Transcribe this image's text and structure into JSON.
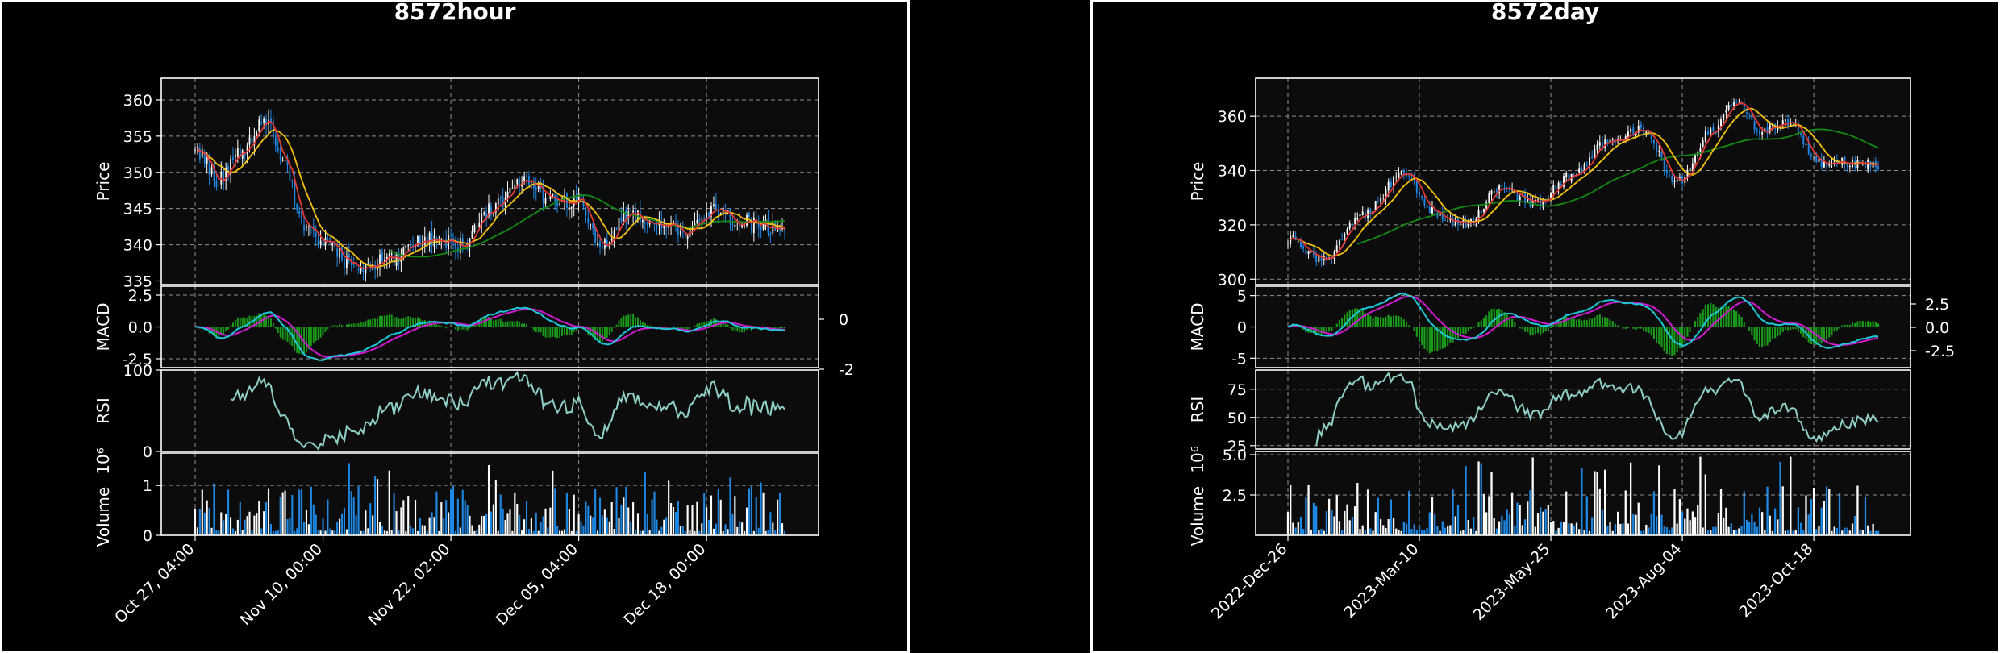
{
  "colors": {
    "background": "#000000",
    "axes_bg": "#0c0c0c",
    "frame": "#ffffff",
    "grid": "#bdbdbd",
    "candle_up": "#ffffff",
    "candle_down": "#1e88e5",
    "ma_short": "#e53935",
    "ma_mid": "#f4c20d",
    "ma_long": "#138a13",
    "macd_line": "#1ec8d8",
    "signal_line": "#d21ad2",
    "histogram": "#1a9e1a",
    "rsi_line": "#8ed0c8",
    "volume_up": "#ffffff",
    "volume_down": "#1e88e5"
  },
  "chart_data": [
    {
      "type": "candlestick",
      "title": "8572hour",
      "x_tick_labels": [
        "Oct 27, 04:00",
        "Nov 10, 00:00",
        "Nov 22, 02:00",
        "Dec 05, 04:00",
        "Dec 18, 00:00"
      ],
      "price": {
        "ylabel": "Price",
        "ylim": [
          334.5,
          363
        ],
        "yticks": [
          "360",
          "355",
          "350",
          "345",
          "340",
          "335"
        ],
        "close_anchors": [
          [
            0,
            353
          ],
          [
            0.04,
            349
          ],
          [
            0.08,
            353
          ],
          [
            0.12,
            357
          ],
          [
            0.15,
            352
          ],
          [
            0.18,
            343
          ],
          [
            0.22,
            340
          ],
          [
            0.27,
            337
          ],
          [
            0.33,
            338
          ],
          [
            0.39,
            341
          ],
          [
            0.45,
            340
          ],
          [
            0.5,
            345
          ],
          [
            0.56,
            349
          ],
          [
            0.61,
            346
          ],
          [
            0.65,
            346
          ],
          [
            0.69,
            340
          ],
          [
            0.73,
            344
          ],
          [
            0.78,
            343
          ],
          [
            0.83,
            342
          ],
          [
            0.88,
            345
          ],
          [
            0.93,
            343
          ],
          [
            1,
            342
          ]
        ],
        "ma_long_range": [
          0.33,
          1.0
        ],
        "grid": true
      },
      "macd": {
        "ylabel": "MACD",
        "ylim": [
          -3.2,
          3.2
        ],
        "yticks_left": [
          "2.5",
          "0.0",
          "-2.5"
        ],
        "yticks_right": [
          "0",
          "-2"
        ]
      },
      "rsi": {
        "ylabel": "RSI",
        "ylim": [
          0,
          100
        ],
        "yticks": [
          "100",
          "0"
        ],
        "start_fraction": 0.06
      },
      "volume": {
        "ylabel": "Volume",
        "scale_label": "10⁶",
        "ylim": [
          0,
          1.65
        ],
        "yticks": [
          "1",
          "0"
        ]
      }
    },
    {
      "type": "candlestick",
      "title": "8572day",
      "x_tick_labels": [
        "2022-Dec-26",
        "2023-Mar-10",
        "2023-May-25",
        "2023-Aug-04",
        "2023-Oct-18"
      ],
      "price": {
        "ylabel": "Price",
        "ylim": [
          298,
          374
        ],
        "yticks": [
          "360",
          "340",
          "320",
          "300"
        ],
        "close_anchors": [
          [
            0,
            315
          ],
          [
            0.06,
            307
          ],
          [
            0.12,
            323
          ],
          [
            0.2,
            339
          ],
          [
            0.24,
            325
          ],
          [
            0.3,
            320
          ],
          [
            0.36,
            333
          ],
          [
            0.42,
            328
          ],
          [
            0.48,
            338
          ],
          [
            0.54,
            350
          ],
          [
            0.6,
            355
          ],
          [
            0.66,
            336
          ],
          [
            0.72,
            355
          ],
          [
            0.76,
            366
          ],
          [
            0.8,
            355
          ],
          [
            0.85,
            358
          ],
          [
            0.9,
            343
          ],
          [
            0.95,
            343
          ],
          [
            1,
            342
          ]
        ],
        "ma_long_range": [
          0.12,
          1.0
        ],
        "grid": true
      },
      "macd": {
        "ylabel": "MACD",
        "ylim": [
          -6.5,
          6.5
        ],
        "yticks_left": [
          "5",
          "0",
          "-5"
        ],
        "yticks_right": [
          "2.5",
          "0.0",
          "-2.5"
        ]
      },
      "rsi": {
        "ylabel": "RSI",
        "ylim": [
          22,
          92
        ],
        "yticks": [
          "75",
          "50",
          "25"
        ],
        "start_fraction": 0.05
      },
      "volume": {
        "ylabel": "Volume",
        "scale_label": "10⁶",
        "ylim": [
          0,
          5.2
        ],
        "yticks": [
          "5.0",
          "2.5"
        ]
      }
    }
  ]
}
